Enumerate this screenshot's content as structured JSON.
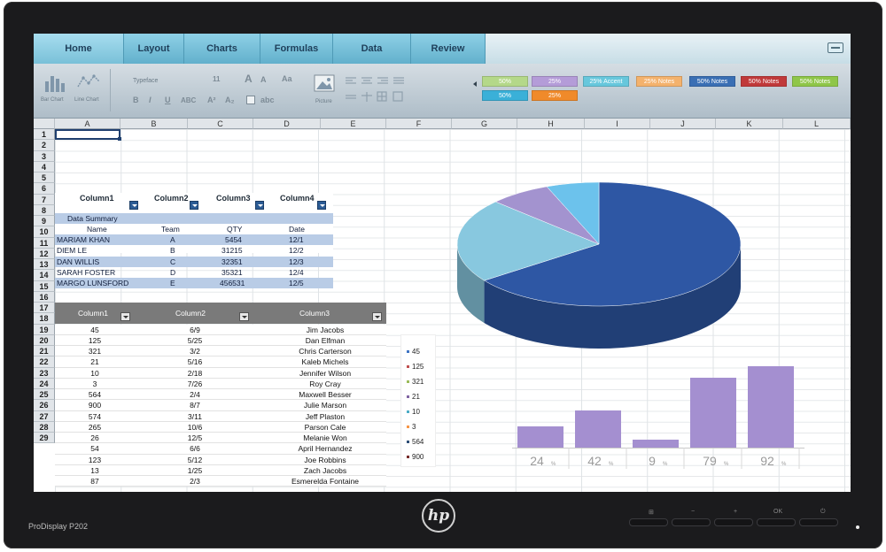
{
  "ribbon": {
    "tabs": [
      "Home",
      "Layout",
      "Charts",
      "Formulas",
      "Data",
      "Review"
    ]
  },
  "toolbar": {
    "bar_chart_label": "Bar Chart",
    "line_chart_label": "Line Chart",
    "font_name": "Typeface",
    "font_size": "11",
    "bold": "B",
    "italic": "I",
    "underline": "U",
    "strikethrough": "ABC",
    "superscript": "A²",
    "subscript": "A₂",
    "grow_font": "A",
    "shrink_font": "A",
    "change_case": "Aa",
    "text_box": "abc",
    "picture_label": "Picture",
    "cell_styles": [
      {
        "label": "50%",
        "color": "#b4d889"
      },
      {
        "label": "25%",
        "color": "#b49cd8"
      },
      {
        "label": "25% Accent",
        "color": "#67c7dc"
      },
      {
        "label": "25% Notes",
        "color": "#f4b26d"
      },
      {
        "label": "50% Notes",
        "color": "#3a6fb4"
      },
      {
        "label": "50% Notes",
        "color": "#c0393a"
      },
      {
        "label": "50% Notes",
        "color": "#8fc649"
      },
      {
        "label": "50%",
        "color": "#3ab0d8"
      },
      {
        "label": "25%",
        "color": "#f08a2a"
      }
    ]
  },
  "grid": {
    "columns": [
      "A",
      "B",
      "C",
      "D",
      "E",
      "F",
      "G",
      "H",
      "I",
      "J",
      "K",
      "L"
    ],
    "rows": [
      "1",
      "2",
      "3",
      "4",
      "5",
      "6",
      "7",
      "8",
      "9",
      "10",
      "11",
      "12",
      "13",
      "14",
      "15",
      "16",
      "17",
      "18",
      "19",
      "20",
      "21",
      "22",
      "23",
      "24",
      "25",
      "26",
      "27",
      "28",
      "29"
    ]
  },
  "table1": {
    "filter_headers": [
      "Column1",
      "Column2",
      "Column3",
      "Column4"
    ],
    "title": "Data Summary",
    "headers": [
      "Name",
      "Team",
      "QTY",
      "Date"
    ],
    "rows": [
      [
        "MARIAM KHAN",
        "A",
        "5454",
        "12/1"
      ],
      [
        "DIEM LE",
        "B",
        "31215",
        "12/2"
      ],
      [
        "DAN WILLIS",
        "C",
        "32351",
        "12/3"
      ],
      [
        "SARAH FOSTER",
        "D",
        "35321",
        "12/4"
      ],
      [
        "MARGO LUNSFORD",
        "E",
        "456531",
        "12/5"
      ]
    ]
  },
  "table2": {
    "headers": [
      "Column1",
      "Column2",
      "Column3"
    ],
    "rows": [
      [
        "45",
        "6/9",
        "Jim Jacobs"
      ],
      [
        "125",
        "5/25",
        "Dan Elfman"
      ],
      [
        "321",
        "3/2",
        "Chris Carterson"
      ],
      [
        "21",
        "5/16",
        "Kaleb Michels"
      ],
      [
        "10",
        "2/18",
        "Jennifer Wilson"
      ],
      [
        "3",
        "7/26",
        "Roy Cray"
      ],
      [
        "564",
        "2/4",
        "Maxwell Besser"
      ],
      [
        "900",
        "8/7",
        "Julie Marson"
      ],
      [
        "574",
        "3/11",
        "Jeff Plaston"
      ],
      [
        "265",
        "10/6",
        "Parson Cale"
      ],
      [
        "26",
        "12/5",
        "Melanie Won"
      ],
      [
        "54",
        "6/6",
        "April Hernandez"
      ],
      [
        "123",
        "5/12",
        "Joe Robbins"
      ],
      [
        "13",
        "1/25",
        "Zach Jacobs"
      ],
      [
        "87",
        "2/3",
        "Esmerelda Fontaine"
      ]
    ]
  },
  "pie_chart": {
    "slices": [
      {
        "value": 65,
        "color": "#2e57a4"
      },
      {
        "value": 22,
        "color": "#88c8df"
      },
      {
        "value": 7,
        "color": "#a393cf"
      },
      {
        "value": 6,
        "color": "#6cc2ec"
      }
    ]
  },
  "bar_chart": {
    "legend": [
      {
        "label": "45",
        "color": "#3f74c4"
      },
      {
        "label": "125",
        "color": "#c05050"
      },
      {
        "label": "321",
        "color": "#9bbb59"
      },
      {
        "label": "21",
        "color": "#8064a2"
      },
      {
        "label": "10",
        "color": "#4bacc6"
      },
      {
        "label": "3",
        "color": "#f79646"
      },
      {
        "label": "564",
        "color": "#2c4d75"
      },
      {
        "label": "900",
        "color": "#772c2a"
      }
    ],
    "bars": [
      {
        "label": "24",
        "value": 24
      },
      {
        "label": "42",
        "value": 42
      },
      {
        "label": "9",
        "value": 9
      },
      {
        "label": "79",
        "value": 79
      },
      {
        "label": "92",
        "value": 92
      }
    ],
    "unit": "%"
  },
  "monitor": {
    "model": "ProDisplay P202",
    "logo": "hp",
    "buttons": [
      "⊞",
      "−",
      "+",
      "OK",
      "⏻"
    ]
  }
}
